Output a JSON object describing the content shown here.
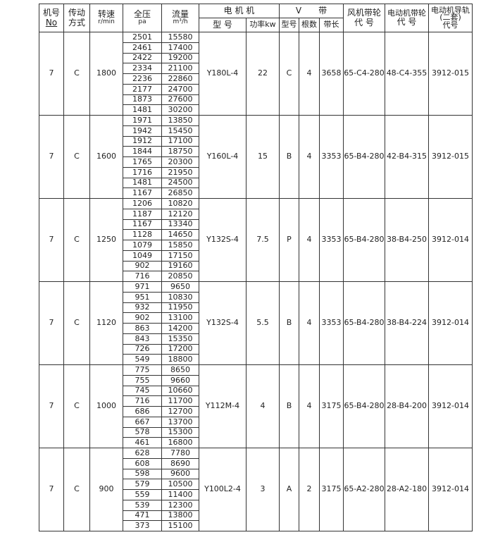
{
  "headers": {
    "no": "机号",
    "no_sub": "No",
    "drive": "传动",
    "drive_sub": "方式",
    "speed": "转速",
    "speed_sub": "r/min",
    "pressure": "全压",
    "pressure_sub": "pa",
    "flow": "流量",
    "flow_sub": "m³/h",
    "motor": "电 机 机",
    "motor_model": "型 号",
    "motor_power": "功率kw",
    "vbelt": "V　　带",
    "vbelt_model": "型号",
    "vbelt_count": "根数",
    "vbelt_length": "带长",
    "fan_pulley": "风机带轮",
    "fan_pulley_sub": "代 号",
    "motor_pulley": "电动机带轮",
    "motor_pulley_sub": "代 号",
    "rail": "电动机导轨",
    "rail_sub1": "(二套)",
    "rail_sub2": "代号"
  },
  "groups": [
    {
      "no": "7",
      "drive": "C",
      "speed": "1800",
      "pressure": [
        "2501",
        "2461",
        "2422",
        "2334",
        "2236",
        "2177",
        "1873",
        "1481"
      ],
      "flow": [
        "15580",
        "17400",
        "19200",
        "21100",
        "22860",
        "24700",
        "27600",
        "30200"
      ],
      "motor_model": "Y180L-4",
      "power": "22",
      "belt_model": "C",
      "belt_count": "4",
      "belt_length": "3658",
      "fan_pulley": "65-C4-280",
      "motor_pulley": "48-C4-355",
      "rail": "3912-015"
    },
    {
      "no": "7",
      "drive": "C",
      "speed": "1600",
      "pressure": [
        "1971",
        "1942",
        "1912",
        "1844",
        "1765",
        "1716",
        "1481",
        "1167"
      ],
      "flow": [
        "13850",
        "15450",
        "17100",
        "18750",
        "20300",
        "21950",
        "24500",
        "26850"
      ],
      "motor_model": "Y160L-4",
      "power": "15",
      "belt_model": "B",
      "belt_count": "4",
      "belt_length": "3353",
      "fan_pulley": "65-B4-280",
      "motor_pulley": "42-B4-315",
      "rail": "3912-015"
    },
    {
      "no": "7",
      "drive": "C",
      "speed": "1250",
      "pressure": [
        "1206",
        "1187",
        "1167",
        "1128",
        "1079",
        "1049",
        "902",
        "716"
      ],
      "flow": [
        "10820",
        "12120",
        "13340",
        "14650",
        "15850",
        "17150",
        "19160",
        "20850"
      ],
      "motor_model": "Y132S-4",
      "power": "7.5",
      "belt_model": "P",
      "belt_count": "4",
      "belt_length": "3353",
      "fan_pulley": "65-B4-280",
      "motor_pulley": "38-B4-250",
      "rail": "3912-014"
    },
    {
      "no": "7",
      "drive": "C",
      "speed": "1120",
      "pressure": [
        "971",
        "951",
        "932",
        "902",
        "863",
        "843",
        "726",
        "549"
      ],
      "flow": [
        "9650",
        "10830",
        "11950",
        "13100",
        "14200",
        "15350",
        "17200",
        "18800"
      ],
      "motor_model": "Y132S-4",
      "power": "5.5",
      "belt_model": "B",
      "belt_count": "4",
      "belt_length": "3353",
      "fan_pulley": "65-B4-280",
      "motor_pulley": "38-B4-224",
      "rail": "3912-014"
    },
    {
      "no": "7",
      "drive": "C",
      "speed": "1000",
      "pressure": [
        "775",
        "755",
        "745",
        "716",
        "686",
        "667",
        "578",
        "461"
      ],
      "flow": [
        "8650",
        "9660",
        "10660",
        "11700",
        "12700",
        "13700",
        "15300",
        "16800"
      ],
      "motor_model": "Y112M-4",
      "power": "4",
      "belt_model": "B",
      "belt_count": "4",
      "belt_length": "3175",
      "fan_pulley": "65-B4-280",
      "motor_pulley": "28-B4-200",
      "rail": "3912-014"
    },
    {
      "no": "7",
      "drive": "C",
      "speed": "900",
      "pressure": [
        "628",
        "608",
        "598",
        "579",
        "559",
        "539",
        "471",
        "373"
      ],
      "flow": [
        "7780",
        "8690",
        "9600",
        "10500",
        "11400",
        "12300",
        "13800",
        "15100"
      ],
      "motor_model": "Y100L2-4",
      "power": "3",
      "belt_model": "A",
      "belt_count": "2",
      "belt_length": "3175",
      "fan_pulley": "65-A2-280",
      "motor_pulley": "28-A2-180",
      "rail": "3912-014"
    }
  ]
}
